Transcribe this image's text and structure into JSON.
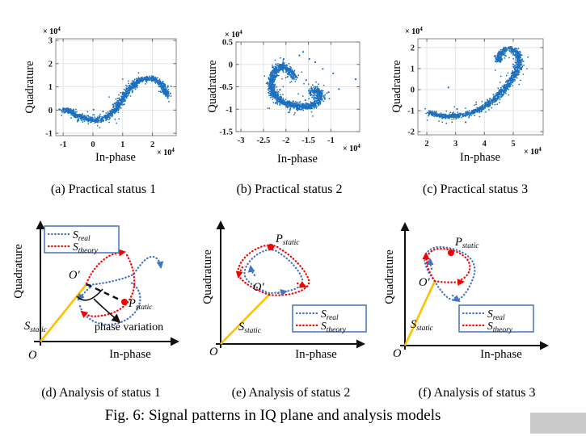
{
  "figure": {
    "caption": "Fig. 6: Signal patterns in IQ plane and analysis models"
  },
  "colors": {
    "scatter": "#1a6fbf",
    "real": "#4472c4",
    "theory": "#f40000",
    "static_vector": "#ffc000",
    "legend_border": "#4472c4",
    "grid": "#e3e3e3",
    "plot_border": "#8a8a8a"
  },
  "chart_data": [
    {
      "id": "a",
      "type": "scatter",
      "caption": "(a) Practical status 1",
      "xlabel": "In-phase",
      "ylabel": "Quadrature",
      "scale_label": {
        "base": "× 10",
        "sup": "4"
      },
      "x_ticks": [
        -1,
        0,
        1,
        2
      ],
      "y_ticks": [
        3,
        2,
        1,
        0,
        -1
      ],
      "xlim": [
        -1.25,
        2.8
      ],
      "ylim": [
        -1.1,
        3.07
      ],
      "units": "1e4",
      "grid": true,
      "backbone": [
        [
          -1.02,
          0.02
        ],
        [
          -0.85,
          -0.02
        ],
        [
          -0.6,
          -0.18
        ],
        [
          -0.35,
          -0.33
        ],
        [
          -0.1,
          -0.42
        ],
        [
          0.15,
          -0.44
        ],
        [
          0.4,
          -0.35
        ],
        [
          0.6,
          -0.15
        ],
        [
          0.8,
          0.12
        ],
        [
          1.0,
          0.5
        ],
        [
          1.2,
          0.85
        ],
        [
          1.4,
          1.1
        ],
        [
          1.6,
          1.3
        ],
        [
          1.8,
          1.38
        ],
        [
          2.0,
          1.36
        ],
        [
          2.15,
          1.28
        ],
        [
          2.3,
          1.1
        ],
        [
          2.42,
          0.88
        ],
        [
          2.5,
          0.62
        ]
      ],
      "n_points": 1300,
      "jitter": 0.06,
      "outliers": [
        [
          -0.98,
          0.06
        ],
        [
          0.34,
          -0.06
        ],
        [
          2.52,
          0.52
        ],
        [
          0.02,
          0.02
        ],
        [
          1.05,
          0.25
        ]
      ]
    },
    {
      "id": "b",
      "type": "scatter",
      "caption": "(b) Practical status 2",
      "xlabel": "In-phase",
      "ylabel": "Quadrature",
      "scale_label": {
        "base": "× 10",
        "sup": "4"
      },
      "x_ticks": [
        -3,
        -2.5,
        -2,
        -1.5,
        -1
      ],
      "y_ticks": [
        0.5,
        0,
        -0.5,
        -1,
        -1.5
      ],
      "xlim": [
        -3.11,
        -0.36
      ],
      "ylim": [
        -1.5,
        0.5
      ],
      "units": "1e4",
      "grid": true,
      "backbone": [
        [
          -1.82,
          -0.3
        ],
        [
          -1.88,
          -0.18
        ],
        [
          -1.98,
          -0.08
        ],
        [
          -2.1,
          -0.04
        ],
        [
          -2.2,
          -0.09
        ],
        [
          -2.28,
          -0.22
        ],
        [
          -2.33,
          -0.4
        ],
        [
          -2.32,
          -0.55
        ],
        [
          -2.25,
          -0.7
        ],
        [
          -2.1,
          -0.82
        ],
        [
          -1.9,
          -0.9
        ],
        [
          -1.7,
          -0.94
        ],
        [
          -1.5,
          -0.95
        ],
        [
          -1.35,
          -0.88
        ],
        [
          -1.25,
          -0.75
        ],
        [
          -1.23,
          -0.65
        ],
        [
          -1.3,
          -0.58
        ],
        [
          -1.4,
          -0.6
        ],
        [
          -1.45,
          -0.68
        ]
      ],
      "n_points": 1400,
      "jitter": 0.042,
      "outliers": [
        [
          -1.62,
          0.28
        ],
        [
          -1.48,
          0.12
        ],
        [
          -1.7,
          0.2
        ],
        [
          -1.35,
          0.05
        ],
        [
          -1.18,
          -0.1
        ],
        [
          -0.95,
          -0.2
        ],
        [
          -0.82,
          -0.55
        ],
        [
          -1.05,
          -0.62
        ],
        [
          -2.05,
          0.12
        ],
        [
          -0.45,
          -0.33
        ],
        [
          -1.55,
          -0.35
        ]
      ]
    },
    {
      "id": "c",
      "type": "scatter",
      "caption": "(c) Practical status 3",
      "xlabel": "In-phase",
      "ylabel": "Quadrature",
      "scale_label": {
        "base": "× 10",
        "sup": "4"
      },
      "x_ticks": [
        2,
        3,
        4,
        5
      ],
      "y_ticks": [
        2,
        1,
        0,
        -1,
        -2
      ],
      "xlim": [
        1.69,
        6.04
      ],
      "ylim": [
        -2.15,
        2.42
      ],
      "units": "1e4",
      "grid": true,
      "backbone": [
        [
          2.05,
          -1.1
        ],
        [
          2.3,
          -1.2
        ],
        [
          2.6,
          -1.26
        ],
        [
          2.95,
          -1.27
        ],
        [
          3.3,
          -1.2
        ],
        [
          3.65,
          -1.05
        ],
        [
          3.95,
          -0.85
        ],
        [
          4.25,
          -0.55
        ],
        [
          4.55,
          -0.2
        ],
        [
          4.8,
          0.2
        ],
        [
          5.0,
          0.6
        ],
        [
          5.15,
          1.0
        ],
        [
          5.22,
          1.35
        ],
        [
          5.18,
          1.65
        ],
        [
          5.05,
          1.85
        ],
        [
          4.88,
          1.95
        ],
        [
          4.7,
          1.9
        ],
        [
          4.55,
          1.72
        ],
        [
          4.48,
          1.5
        ],
        [
          4.5,
          1.3
        ]
      ],
      "n_points": 1250,
      "jitter": 0.065,
      "outliers": [
        [
          2.75,
          0.1
        ],
        [
          3.35,
          -1.55
        ],
        [
          4.4,
          -0.55
        ],
        [
          3.05,
          -0.92
        ],
        [
          5.0,
          1.2
        ]
      ]
    }
  ],
  "diagrams": [
    {
      "id": "d",
      "caption": "(d) Analysis of status 1",
      "xlabel": "In-phase",
      "ylabel": "Quadrature",
      "origin": "O",
      "origin_prime": "O′",
      "s_static": {
        "base": "S",
        "sub": "static"
      },
      "p_static": {
        "base": "P",
        "sub": "static"
      },
      "legend": {
        "real": {
          "base": "S",
          "sub": "real"
        },
        "theory": {
          "base": "S",
          "sub": "theory"
        }
      },
      "annotation": "phase variation"
    },
    {
      "id": "e",
      "caption": "(e) Analysis of status 2",
      "xlabel": "In-phase",
      "ylabel": "Quadrature",
      "origin": "O",
      "origin_prime": "O′",
      "s_static": {
        "base": "S",
        "sub": "static"
      },
      "p_static": {
        "base": "P",
        "sub": "static"
      },
      "legend": {
        "real": {
          "base": "S",
          "sub": "real"
        },
        "theory": {
          "base": "S",
          "sub": "theory"
        }
      }
    },
    {
      "id": "f",
      "caption": "(f) Analysis of status 3",
      "xlabel": "In-phase",
      "ylabel": "Quadrature",
      "origin": "O",
      "origin_prime": "O′",
      "s_static": {
        "base": "S",
        "sub": "static"
      },
      "p_static": {
        "base": "P",
        "sub": "static"
      },
      "legend": {
        "real": {
          "base": "S",
          "sub": "real"
        },
        "theory": {
          "base": "S",
          "sub": "theory"
        }
      }
    }
  ]
}
